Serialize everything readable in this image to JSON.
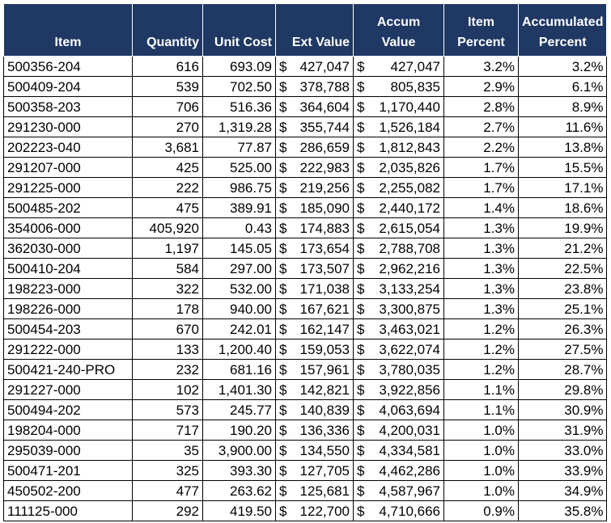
{
  "headers": {
    "item": "Item",
    "quantity": "Quantity",
    "unit_cost": "Unit Cost",
    "ext_value": "Ext Value",
    "accum_value": [
      "Accum",
      "Value"
    ],
    "item_percent": [
      "Item",
      "Percent"
    ],
    "accumulated_percent": [
      "Accumulated",
      "Percent"
    ]
  },
  "rows": [
    {
      "item": "500356-204",
      "qty": "616",
      "cost": "693.09",
      "ext": "427,047",
      "accum": "427,047",
      "ipct": "3.2%",
      "apct": "3.2%"
    },
    {
      "item": "500409-204",
      "qty": "539",
      "cost": "702.50",
      "ext": "378,788",
      "accum": "805,835",
      "ipct": "2.9%",
      "apct": "6.1%"
    },
    {
      "item": "500358-203",
      "qty": "706",
      "cost": "516.36",
      "ext": "364,604",
      "accum": "1,170,440",
      "ipct": "2.8%",
      "apct": "8.9%"
    },
    {
      "item": "291230-000",
      "qty": "270",
      "cost": "1,319.28",
      "ext": "355,744",
      "accum": "1,526,184",
      "ipct": "2.7%",
      "apct": "11.6%"
    },
    {
      "item": "202223-040",
      "qty": "3,681",
      "cost": "77.87",
      "ext": "286,659",
      "accum": "1,812,843",
      "ipct": "2.2%",
      "apct": "13.8%"
    },
    {
      "item": "291207-000",
      "qty": "425",
      "cost": "525.00",
      "ext": "222,983",
      "accum": "2,035,826",
      "ipct": "1.7%",
      "apct": "15.5%"
    },
    {
      "item": "291225-000",
      "qty": "222",
      "cost": "986.75",
      "ext": "219,256",
      "accum": "2,255,082",
      "ipct": "1.7%",
      "apct": "17.1%"
    },
    {
      "item": "500485-202",
      "qty": "475",
      "cost": "389.91",
      "ext": "185,090",
      "accum": "2,440,172",
      "ipct": "1.4%",
      "apct": "18.6%"
    },
    {
      "item": "354006-000",
      "qty": "405,920",
      "cost": "0.43",
      "ext": "174,883",
      "accum": "2,615,054",
      "ipct": "1.3%",
      "apct": "19.9%"
    },
    {
      "item": "362030-000",
      "qty": "1,197",
      "cost": "145.05",
      "ext": "173,654",
      "accum": "2,788,708",
      "ipct": "1.3%",
      "apct": "21.2%"
    },
    {
      "item": "500410-204",
      "qty": "584",
      "cost": "297.00",
      "ext": "173,507",
      "accum": "2,962,216",
      "ipct": "1.3%",
      "apct": "22.5%"
    },
    {
      "item": "198223-000",
      "qty": "322",
      "cost": "532.00",
      "ext": "171,038",
      "accum": "3,133,254",
      "ipct": "1.3%",
      "apct": "23.8%"
    },
    {
      "item": "198226-000",
      "qty": "178",
      "cost": "940.00",
      "ext": "167,621",
      "accum": "3,300,875",
      "ipct": "1.3%",
      "apct": "25.1%"
    },
    {
      "item": "500454-203",
      "qty": "670",
      "cost": "242.01",
      "ext": "162,147",
      "accum": "3,463,021",
      "ipct": "1.2%",
      "apct": "26.3%"
    },
    {
      "item": "291222-000",
      "qty": "133",
      "cost": "1,200.40",
      "ext": "159,053",
      "accum": "3,622,074",
      "ipct": "1.2%",
      "apct": "27.5%"
    },
    {
      "item": "500421-240-PRO",
      "qty": "232",
      "cost": "681.16",
      "ext": "157,961",
      "accum": "3,780,035",
      "ipct": "1.2%",
      "apct": "28.7%"
    },
    {
      "item": "291227-000",
      "qty": "102",
      "cost": "1,401.30",
      "ext": "142,821",
      "accum": "3,922,856",
      "ipct": "1.1%",
      "apct": "29.8%"
    },
    {
      "item": "500494-202",
      "qty": "573",
      "cost": "245.77",
      "ext": "140,839",
      "accum": "4,063,694",
      "ipct": "1.1%",
      "apct": "30.9%"
    },
    {
      "item": "198204-000",
      "qty": "717",
      "cost": "190.20",
      "ext": "136,336",
      "accum": "4,200,031",
      "ipct": "1.0%",
      "apct": "31.9%"
    },
    {
      "item": "295039-000",
      "qty": "35",
      "cost": "3,900.00",
      "ext": "134,550",
      "accum": "4,334,581",
      "ipct": "1.0%",
      "apct": "33.0%"
    },
    {
      "item": "500471-201",
      "qty": "325",
      "cost": "393.30",
      "ext": "127,705",
      "accum": "4,462,286",
      "ipct": "1.0%",
      "apct": "33.9%"
    },
    {
      "item": "450502-200",
      "qty": "477",
      "cost": "263.62",
      "ext": "125,681",
      "accum": "4,587,967",
      "ipct": "1.0%",
      "apct": "34.9%"
    },
    {
      "item": "111125-000",
      "qty": "292",
      "cost": "419.50",
      "ext": "122,700",
      "accum": "4,710,666",
      "ipct": "0.9%",
      "apct": "35.8%"
    }
  ],
  "currency_symbol": "$",
  "colors": {
    "header_bg": "#1f3864",
    "header_text": "#ffffff",
    "grid": "#000000"
  }
}
